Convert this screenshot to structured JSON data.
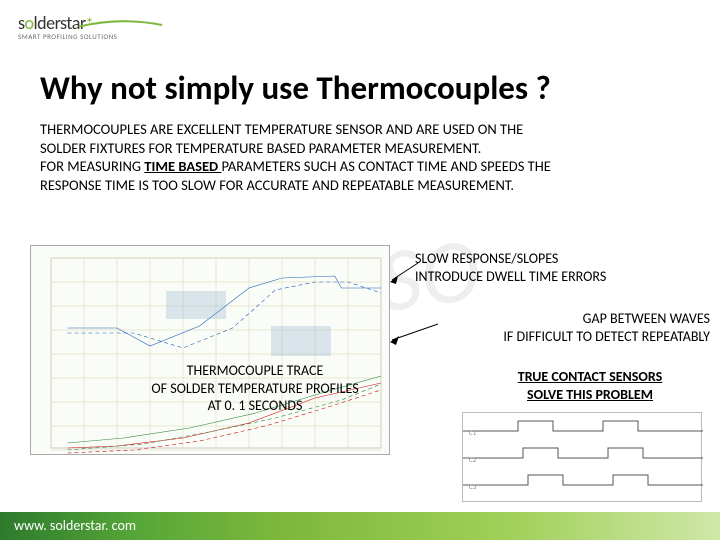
{
  "logo": {
    "name_pre": "s",
    "name_mid": "o",
    "name_post": "lderstar",
    "star": "*",
    "tagline": "SMART PROFILING SOLUTIONS"
  },
  "title": "Why not simply use Thermocouples ?",
  "body": {
    "line1": "THERMOCOUPLES ARE EXCELLENT TEMPERATURE SENSOR AND ARE USED ON THE",
    "line2": "SOLDER FIXTURES FOR TEMPERATURE BASED PARAMETER MEASUREMENT.",
    "line3a": "FOR MEASURING ",
    "line3b": "TIME BASED ",
    "line3c": "PARAMETERS SUCH AS CONTACT TIME AND SPEEDS THE",
    "line4": "RESPONSE TIME IS TOO SLOW FOR ACCURATE AND REPEATABLE MEASUREMENT."
  },
  "annotations": {
    "a1_l1": "SLOW RESPONSE/SLOPES",
    "a1_l2": "INTRODUCE DWELL TIME ERRORS",
    "a2_l1": "GAP BETWEEN WAVES",
    "a2_l2": "IF DIFFICULT TO DETECT REPEATABLY",
    "a3_l1": "THERMOCOUPLE TRACE",
    "a3_l2": "OF SOLDER TEMPERATURE PROFILES",
    "a3_l3": "AT 0. 1 SECONDS",
    "a4_l1": "TRUE CONTACT SENSORS",
    "a4_l2": "SOLVE THIS PROBLEM"
  },
  "footer": "www. solderstar. com",
  "chart": {
    "bg": "#fafcf7",
    "grid_color": "#d4d4a8",
    "series": [
      {
        "color": "#1f5fbf",
        "dash": "",
        "points": [
          [
            5,
            70
          ],
          [
            20,
            70
          ],
          [
            30,
            88
          ],
          [
            45,
            68
          ],
          [
            60,
            30
          ],
          [
            70,
            20
          ],
          [
            86,
            18
          ],
          [
            88,
            30
          ],
          [
            100,
            30
          ]
        ]
      },
      {
        "color": "#1f5fbf",
        "dash": "4 3",
        "points": [
          [
            5,
            75
          ],
          [
            25,
            75
          ],
          [
            40,
            90
          ],
          [
            55,
            70
          ],
          [
            68,
            32
          ],
          [
            80,
            24
          ],
          [
            90,
            24
          ],
          [
            100,
            35
          ]
        ]
      },
      {
        "color": "#d01010",
        "dash": "",
        "points": [
          [
            5,
            190
          ],
          [
            20,
            188
          ],
          [
            40,
            180
          ],
          [
            60,
            165
          ],
          [
            80,
            140
          ],
          [
            100,
            125
          ]
        ]
      },
      {
        "color": "#d01010",
        "dash": "4 3",
        "points": [
          [
            5,
            195
          ],
          [
            25,
            192
          ],
          [
            45,
            183
          ],
          [
            65,
            168
          ],
          [
            85,
            148
          ],
          [
            100,
            132
          ]
        ]
      },
      {
        "color": "#2e8540",
        "dash": "",
        "points": [
          [
            5,
            185
          ],
          [
            22,
            180
          ],
          [
            42,
            170
          ],
          [
            62,
            155
          ],
          [
            82,
            135
          ],
          [
            100,
            118
          ]
        ]
      },
      {
        "color": "#2e8540",
        "dash": "4 3",
        "points": [
          [
            5,
            192
          ],
          [
            28,
            186
          ],
          [
            48,
            174
          ],
          [
            68,
            160
          ],
          [
            88,
            142
          ],
          [
            100,
            126
          ]
        ]
      }
    ]
  },
  "small_chart": {
    "series": [
      {
        "color": "#555",
        "points": [
          [
            0,
            18
          ],
          [
            55,
            18
          ],
          [
            55,
            8
          ],
          [
            90,
            8
          ],
          [
            90,
            18
          ],
          [
            140,
            18
          ],
          [
            140,
            8
          ],
          [
            175,
            8
          ],
          [
            175,
            18
          ],
          [
            240,
            18
          ]
        ]
      },
      {
        "color": "#555",
        "points": [
          [
            0,
            45
          ],
          [
            60,
            45
          ],
          [
            60,
            35
          ],
          [
            95,
            35
          ],
          [
            95,
            45
          ],
          [
            145,
            45
          ],
          [
            145,
            35
          ],
          [
            180,
            35
          ],
          [
            180,
            45
          ],
          [
            240,
            45
          ]
        ]
      },
      {
        "color": "#555",
        "points": [
          [
            0,
            72
          ],
          [
            65,
            72
          ],
          [
            65,
            62
          ],
          [
            100,
            62
          ],
          [
            100,
            72
          ],
          [
            150,
            72
          ],
          [
            150,
            62
          ],
          [
            185,
            62
          ],
          [
            185,
            72
          ],
          [
            240,
            72
          ]
        ]
      }
    ]
  }
}
